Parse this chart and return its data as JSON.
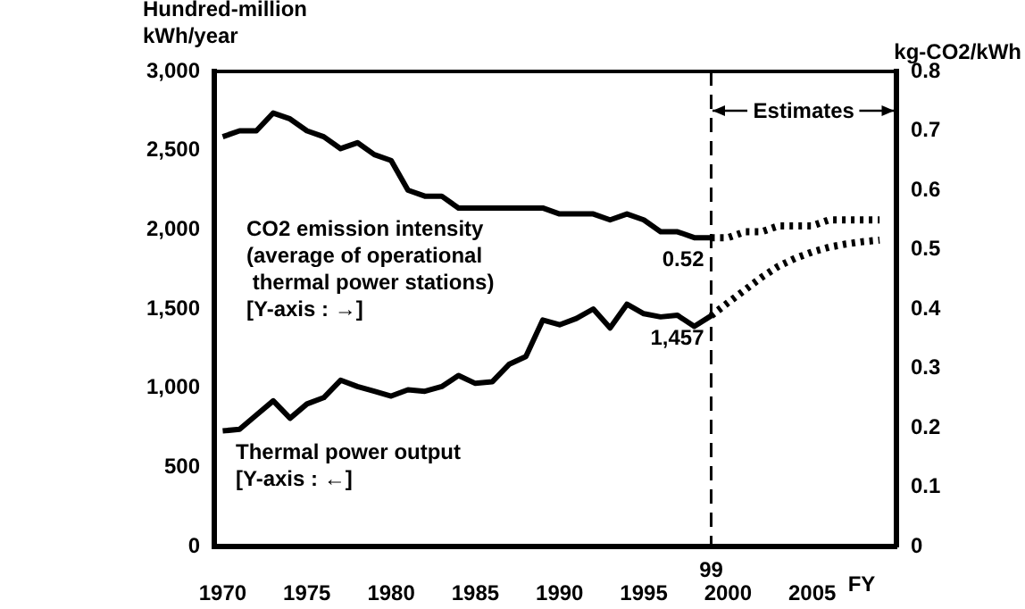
{
  "chart_data": {
    "type": "line",
    "ylabel": "Hundred-million\nkWh/year",
    "y2label": "kg-CO2/kWh",
    "xlabel": "FY",
    "xlim": [
      1969.5,
      2010
    ],
    "xticks": [
      1970,
      1975,
      1980,
      1985,
      1990,
      1995,
      2000,
      2005
    ],
    "ylim": [
      0,
      3000
    ],
    "yticks": [
      0,
      500,
      {
        "value": 1000,
        "label": "1,000"
      },
      {
        "value": 1500,
        "label": "1,500"
      },
      {
        "value": 2000,
        "label": "2,000"
      },
      {
        "value": 2500,
        "label": "2,500"
      },
      {
        "value": 3000,
        "label": "3,000"
      }
    ],
    "y2lim": [
      0,
      0.8
    ],
    "y2ticks": [
      0,
      0.1,
      0.2,
      0.3,
      0.4,
      0.5,
      0.6,
      0.7,
      0.8
    ],
    "series": [
      {
        "type": "line",
        "color": "#000000",
        "line_style": "solid",
        "x": [
          1970,
          1971,
          1972,
          1973,
          1974,
          1975,
          1976,
          1977,
          1978,
          1979,
          1980,
          1981,
          1982,
          1983,
          1984,
          1985,
          1986,
          1987,
          1988,
          1989,
          1990,
          1991,
          1992,
          1993,
          1994,
          1995,
          1996,
          1997,
          1998,
          1999
        ],
        "values": [
          730,
          740,
          830,
          920,
          810,
          900,
          940,
          1050,
          1010,
          980,
          950,
          990,
          980,
          1010,
          1080,
          1030,
          1040,
          1150,
          1200,
          1430,
          1400,
          1440,
          1500,
          1380,
          1530,
          1470,
          1450,
          1460,
          1390,
          1457
        ],
        "value_labels": [
          null,
          null,
          null,
          null,
          null,
          null,
          null,
          null,
          null,
          null,
          null,
          null,
          null,
          null,
          null,
          null,
          null,
          null,
          null,
          null,
          null,
          null,
          null,
          null,
          null,
          null,
          null,
          null,
          null,
          "1,457"
        ]
      },
      {
        "type": "line",
        "color": "#000000",
        "line_style": "dotted",
        "x": [
          1999,
          2000,
          2001,
          2002,
          2003,
          2004,
          2005,
          2006,
          2007,
          2008,
          2009
        ],
        "values": [
          1457,
          1540,
          1620,
          1700,
          1770,
          1820,
          1860,
          1890,
          1910,
          1925,
          1935
        ]
      },
      {
        "type": "line",
        "axis": "y2",
        "color": "#000000",
        "line_style": "solid",
        "x": [
          1970,
          1971,
          1972,
          1973,
          1974,
          1975,
          1976,
          1977,
          1978,
          1979,
          1980,
          1981,
          1982,
          1983,
          1984,
          1985,
          1986,
          1987,
          1988,
          1989,
          1990,
          1991,
          1992,
          1993,
          1994,
          1995,
          1996,
          1997,
          1998,
          1999
        ],
        "values": [
          0.69,
          0.7,
          0.7,
          0.73,
          0.72,
          0.7,
          0.69,
          0.67,
          0.68,
          0.66,
          0.65,
          0.6,
          0.59,
          0.59,
          0.57,
          0.57,
          0.57,
          0.57,
          0.57,
          0.57,
          0.56,
          0.56,
          0.56,
          0.55,
          0.56,
          0.55,
          0.53,
          0.53,
          0.52,
          0.52
        ],
        "value_labels": [
          null,
          null,
          null,
          null,
          null,
          null,
          null,
          null,
          null,
          null,
          null,
          null,
          null,
          null,
          null,
          null,
          null,
          null,
          null,
          null,
          null,
          null,
          null,
          null,
          null,
          null,
          null,
          null,
          null,
          "0.52"
        ]
      },
      {
        "type": "line",
        "axis": "y2",
        "color": "#000000",
        "line_style": "dotted",
        "x": [
          1999,
          2000,
          2001,
          2002,
          2003,
          2004,
          2005,
          2006,
          2007,
          2008,
          2009
        ],
        "values": [
          0.52,
          0.52,
          0.53,
          0.53,
          0.54,
          0.54,
          0.54,
          0.55,
          0.55,
          0.55,
          0.55
        ]
      }
    ],
    "ref_lines": [
      {
        "axis": "x",
        "value": 1999,
        "line_style": "dashed"
      }
    ],
    "annotations": [
      "CO2 emission intensity\n(average of operational\n thermal power stations)\n[Y-axis : →]",
      "Thermal power output\n[Y-axis : ←]",
      "Estimates",
      "99"
    ],
    "grid": false,
    "legend": false,
    "marker": "none"
  }
}
